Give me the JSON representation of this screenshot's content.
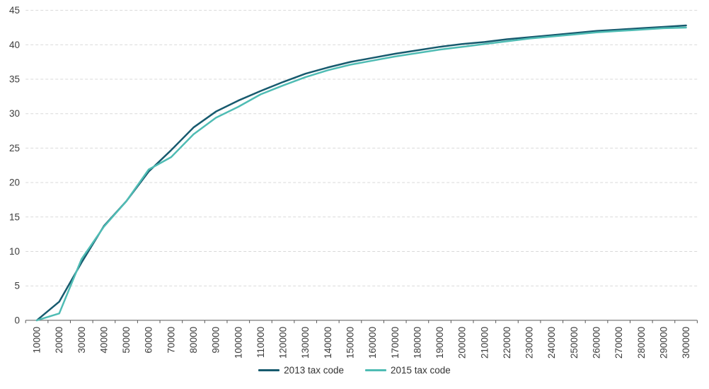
{
  "chart_data": {
    "type": "line",
    "title": "",
    "xlabel": "",
    "ylabel": "",
    "x": [
      10000,
      20000,
      30000,
      40000,
      50000,
      60000,
      70000,
      80000,
      90000,
      100000,
      110000,
      120000,
      130000,
      140000,
      150000,
      160000,
      170000,
      180000,
      190000,
      200000,
      210000,
      220000,
      230000,
      240000,
      250000,
      260000,
      270000,
      280000,
      290000,
      300000
    ],
    "series": [
      {
        "name": "2013 tax code",
        "color": "#175a6e",
        "values": [
          0,
          2.7,
          8.4,
          13.7,
          17.3,
          21.6,
          24.7,
          28.0,
          30.3,
          31.9,
          33.3,
          34.6,
          35.8,
          36.7,
          37.5,
          38.1,
          38.7,
          39.2,
          39.7,
          40.1,
          40.4,
          40.8,
          41.1,
          41.4,
          41.7,
          42.0,
          42.2,
          42.4,
          42.6,
          42.8
        ]
      },
      {
        "name": "2015 tax code",
        "color": "#4fbcb4",
        "values": [
          0,
          1.0,
          8.9,
          13.6,
          17.3,
          21.9,
          23.7,
          27.0,
          29.4,
          31.0,
          32.8,
          34.1,
          35.3,
          36.3,
          37.1,
          37.7,
          38.3,
          38.8,
          39.3,
          39.7,
          40.1,
          40.5,
          40.9,
          41.2,
          41.5,
          41.8,
          42.0,
          42.2,
          42.4,
          42.5
        ]
      }
    ],
    "ylim": [
      0,
      45
    ],
    "ytick_step": 5,
    "yticks": [
      0,
      5,
      10,
      15,
      20,
      25,
      30,
      35,
      40,
      45
    ],
    "grid": "horizontal-dashed",
    "legend_position": "bottom-center",
    "x_label_rotation": -90
  },
  "colors": {
    "background": "#ffffff",
    "gridline": "#d9d9d9",
    "axis_line": "#595959",
    "tick_label": "#3d3d3d",
    "legend_text": "#333333"
  }
}
